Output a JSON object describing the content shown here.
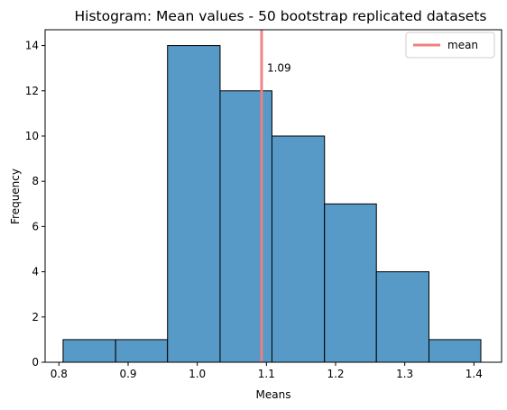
{
  "chart_data": {
    "type": "bar",
    "title": "Histogram: Mean values - 50 bootstrap replicated datasets",
    "xlabel": "Means",
    "ylabel": "Frequency",
    "xlim": [
      0.78,
      1.44
    ],
    "ylim": [
      0,
      14.7
    ],
    "bin_edges": [
      0.806,
      0.882,
      0.957,
      1.033,
      1.108,
      1.184,
      1.259,
      1.335,
      1.41
    ],
    "values": [
      1,
      1,
      14,
      12,
      10,
      7,
      4,
      1
    ],
    "x_ticks": [
      "0.8",
      "0.9",
      "1.0",
      "1.1",
      "1.2",
      "1.3",
      "1.4"
    ],
    "x_tick_values": [
      0.8,
      0.9,
      1.0,
      1.1,
      1.2,
      1.3,
      1.4
    ],
    "y_ticks": [
      "0",
      "2",
      "4",
      "6",
      "8",
      "10",
      "12",
      "14"
    ],
    "y_tick_values": [
      0,
      2,
      4,
      6,
      8,
      10,
      12,
      14
    ],
    "mean_value": 1.093,
    "mean_label": "1.09",
    "legend": {
      "entries": [
        "mean"
      ],
      "placement": "top-right"
    },
    "grid": false,
    "colors": {
      "bar_fill": "#5799c7",
      "bar_edge": "#000000",
      "mean_line": "#f08080"
    }
  }
}
